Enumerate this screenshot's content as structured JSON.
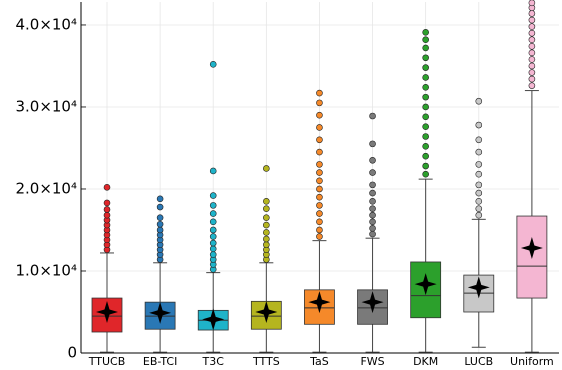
{
  "chart_data": {
    "type": "box",
    "categories": [
      "TTUCB",
      "EB-TCI",
      "T3C",
      "TTTS",
      "TaS",
      "FWS",
      "DKM",
      "LUCB",
      "Uniform"
    ],
    "boxes": [
      {
        "color": "#e0262a",
        "low": 100,
        "q1": 2560,
        "median": 4500,
        "q3": 6700,
        "high": 12200,
        "mean": 5000,
        "outliers": [
          12600,
          13200,
          13800,
          14400,
          15000,
          15600,
          16200,
          16800,
          17500,
          18300,
          20200
        ]
      },
      {
        "color": "#2a78b5",
        "low": 100,
        "q1": 2900,
        "median": 4500,
        "q3": 6200,
        "high": 11000,
        "mean": 4900,
        "outliers": [
          11400,
          12000,
          12600,
          13200,
          13800,
          14400,
          15000,
          15700,
          16500,
          17800,
          18800
        ]
      },
      {
        "color": "#1fb3c9",
        "low": 100,
        "q1": 2800,
        "median": 4000,
        "q3": 5200,
        "high": 9800,
        "mean": 4100,
        "outliers": [
          10200,
          10800,
          11400,
          12000,
          12700,
          13400,
          14200,
          15000,
          16000,
          17000,
          18000,
          19200,
          22200,
          35200
        ]
      },
      {
        "color": "#b5b51f",
        "low": 100,
        "q1": 2900,
        "median": 4500,
        "q3": 6300,
        "high": 11000,
        "mean": 5000,
        "outliers": [
          11400,
          12000,
          12600,
          13200,
          13900,
          14700,
          15600,
          16500,
          17600,
          18500,
          22500
        ]
      },
      {
        "color": "#f5892a",
        "low": 100,
        "q1": 3500,
        "median": 5500,
        "q3": 7700,
        "high": 13700,
        "mean": 6200,
        "outliers": [
          14200,
          15000,
          16000,
          17000,
          18000,
          19000,
          20000,
          21000,
          22000,
          23000,
          24500,
          26000,
          27500,
          29000,
          30500,
          31700
        ]
      },
      {
        "color": "#7a7a7a",
        "low": 100,
        "q1": 3500,
        "median": 5500,
        "q3": 7700,
        "high": 14000,
        "mean": 6200,
        "outliers": [
          14500,
          15200,
          16000,
          16800,
          17600,
          18500,
          19500,
          20500,
          22000,
          23500,
          25500,
          28900
        ]
      },
      {
        "color": "#2ca02c",
        "low": 100,
        "q1": 4300,
        "median": 7000,
        "q3": 11100,
        "high": 21200,
        "mean": 8400,
        "outliers": [
          21800,
          22800,
          24000,
          25200,
          26400,
          27600,
          28800,
          30000,
          31200,
          32400,
          33600,
          34800,
          36000,
          37200,
          38200,
          39100
        ]
      },
      {
        "color": "#c8c8c8",
        "low": 700,
        "q1": 5000,
        "median": 7300,
        "q3": 9500,
        "high": 16300,
        "mean": 8000,
        "outliers": [
          16800,
          17600,
          18500,
          19500,
          20500,
          21800,
          23000,
          24500,
          26000,
          27800,
          30700
        ]
      },
      {
        "color": "#f4b6d2",
        "low": 100,
        "q1": 6700,
        "median": 10600,
        "q3": 16700,
        "high": 32000,
        "mean": 12800,
        "outliers": [
          32600,
          33400,
          34200,
          35000,
          35800,
          36600,
          37400,
          38200,
          39000,
          39800,
          40600,
          41400,
          42100,
          42700
        ]
      }
    ],
    "ylim": [
      0,
      42800
    ],
    "yticks": [
      0,
      {
        "value": 10000,
        "label": "1.0×10⁴"
      },
      {
        "value": 20000,
        "label": "2.0×10⁴"
      },
      {
        "value": 30000,
        "label": "3.0×10⁴"
      },
      {
        "value": 40000,
        "label": "4.0×10⁴"
      }
    ],
    "grid": true
  }
}
